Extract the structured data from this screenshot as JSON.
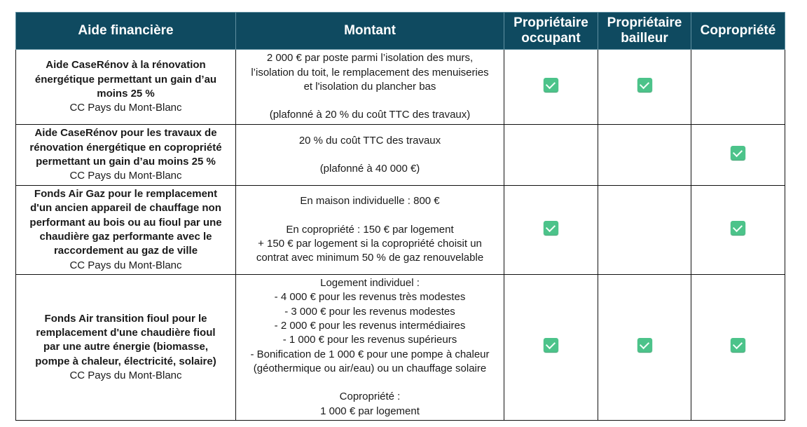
{
  "headers": [
    "Aide financière",
    "Montant",
    "Propriétaire occupant",
    "Propriétaire bailleur",
    "Copropriété"
  ],
  "rows": [
    {
      "title": [
        "Aide CaseRénov à la rénovation",
        "énergétique permettant un gain d’au",
        "moins 25 %"
      ],
      "org": "CC Pays du Mont-Blanc",
      "amount": [
        "2 000 € par poste parmi l’isolation des murs,",
        "l’isolation du toit, le remplacement des menuiseries",
        "et l'isolation du plancher bas",
        "",
        "(plafonné à 20 % du coût TTC des travaux)"
      ],
      "checks": [
        true,
        true,
        false
      ]
    },
    {
      "title": [
        "Aide CaseRénov pour les travaux de",
        "rénovation énergétique en copropriété",
        "permettant un gain d’au moins 25 %"
      ],
      "org": "CC Pays du Mont-Blanc",
      "amount": [
        "20 % du coût TTC des travaux",
        "",
        "(plafonné à 40 000 €)"
      ],
      "checks": [
        false,
        false,
        true
      ]
    },
    {
      "title": [
        "Fonds Air Gaz pour le remplacement",
        "d'un ancien appareil de chauffage non",
        "performant au bois ou au fioul par une",
        "chaudière gaz performante avec le",
        "raccordement au gaz de ville"
      ],
      "org": "CC Pays du Mont-Blanc",
      "amount": [
        "En maison individuelle : 800 €",
        "",
        "En copropriété : 150 € par logement",
        "+ 150 € par logement si la copropriété choisit un",
        "contrat avec minimum 50 % de gaz renouvelable"
      ],
      "checks": [
        true,
        false,
        true
      ]
    },
    {
      "title": [
        "Fonds Air transition fioul pour le",
        "remplacement d'une chaudière fioul",
        "par une autre énergie (biomasse,",
        "pompe à chaleur, électricité, solaire)"
      ],
      "org": "CC Pays du Mont-Blanc",
      "amount": [
        "Logement individuel :",
        "- 4 000 € pour les revenus très modestes",
        "- 3 000 € pour les revenus modestes",
        "- 2 000 € pour les revenus intermédiaires",
        "- 1 000 € pour les revenus supérieurs",
        "- Bonification de 1 000 € pour une pompe à chaleur",
        "(géothermique ou air/eau) ou un chauffage solaire",
        "",
        "Copropriété :",
        "1 000 € par logement"
      ],
      "checks": [
        true,
        true,
        true
      ]
    }
  ],
  "colors": {
    "header_bg": "#0f4a60",
    "check": "#4cc38a"
  },
  "icons": {
    "check": "checkbox-checked-icon"
  }
}
